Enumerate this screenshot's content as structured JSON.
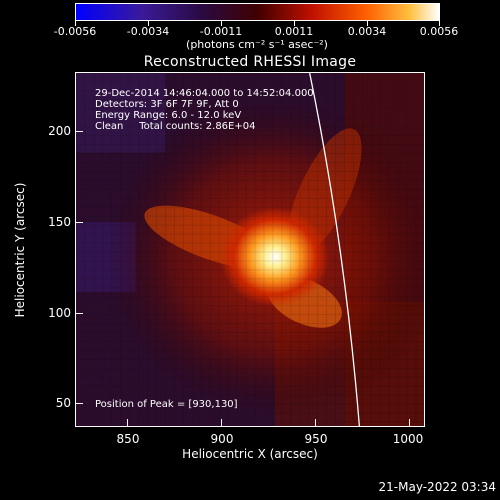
{
  "colorbar": {
    "ticks": [
      "-0.0056",
      "-0.0034",
      "-0.0011",
      "0.0011",
      "0.0034",
      "0.0056"
    ],
    "units": "(photons cm⁻² s⁻¹ asec⁻²)"
  },
  "title": "Reconstructed RHESSI Image",
  "info": {
    "time_range": "29-Dec-2014 14:46:04.000 to 14:52:04.000",
    "detectors": "Detectors: 3F 6F 7F 9F, Att 0",
    "energy": "Energy Range: 6.0 - 12.0 keV",
    "method": "Clean     Total counts: 2.86E+04",
    "peak": "Position of Peak = [930,130]"
  },
  "axes": {
    "xlabel": "Heliocentric X (arcsec)",
    "ylabel": "Heliocentric Y (arcsec)",
    "xticks": [
      "850",
      "900",
      "950",
      "1000"
    ],
    "yticks": [
      "200",
      "150",
      "100",
      "50"
    ]
  },
  "datestamp": "21-May-2022 03:34"
}
